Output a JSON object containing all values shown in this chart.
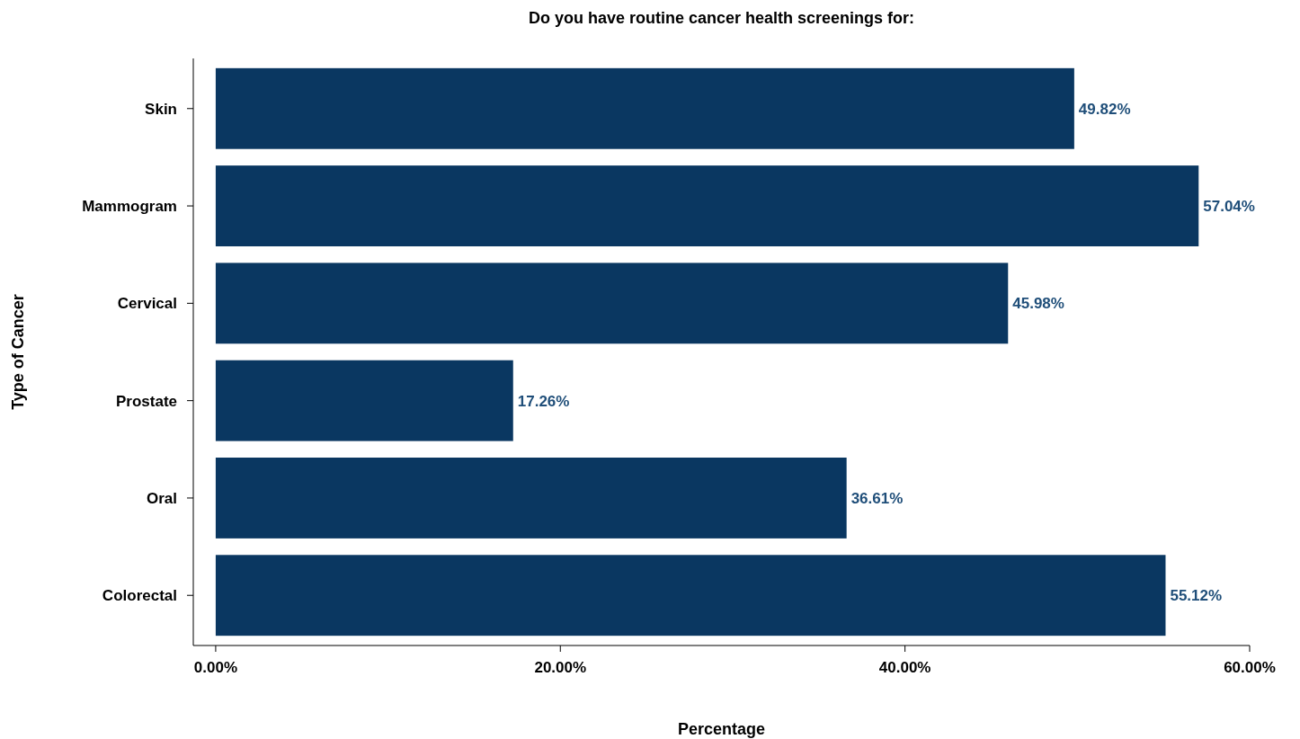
{
  "chart_data": {
    "type": "bar",
    "orientation": "horizontal",
    "title": "Do you have routine cancer health screenings for:",
    "xlabel": "Percentage",
    "ylabel": "Type of Cancer",
    "categories": [
      "Skin",
      "Mammogram",
      "Cervical",
      "Prostate",
      "Oral",
      "Colorectal"
    ],
    "values": [
      49.82,
      57.04,
      45.98,
      17.26,
      36.61,
      55.12
    ],
    "value_labels": [
      "49.82%",
      "57.04%",
      "45.98%",
      "17.26%",
      "36.61%",
      "55.12%"
    ],
    "color": "#0a3761",
    "xlim": [
      -1.3,
      60
    ],
    "xticks": [
      {
        "value": 0,
        "label": "0.00%"
      },
      {
        "value": 20,
        "label": "20.00%"
      },
      {
        "value": 40,
        "label": "40.00%"
      },
      {
        "value": 60,
        "label": "60.00%"
      }
    ],
    "grid": false
  }
}
